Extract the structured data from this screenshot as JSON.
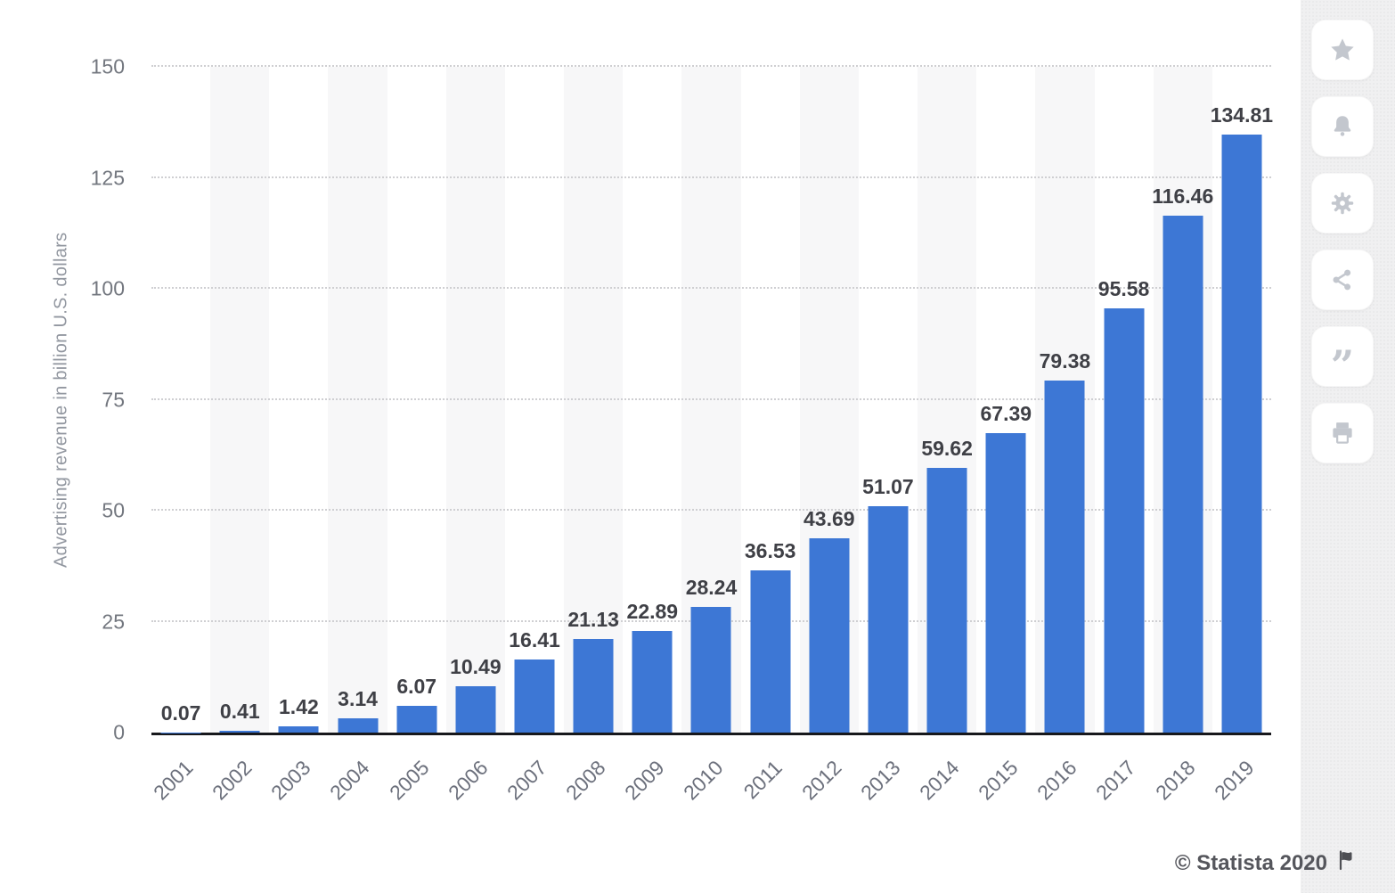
{
  "chart_data": {
    "type": "bar",
    "title": "",
    "categories": [
      "2001",
      "2002",
      "2003",
      "2004",
      "2005",
      "2006",
      "2007",
      "2008",
      "2009",
      "2010",
      "2011",
      "2012",
      "2013",
      "2014",
      "2015",
      "2016",
      "2017",
      "2018",
      "2019"
    ],
    "values": [
      0.07,
      0.41,
      1.42,
      3.14,
      6.07,
      10.49,
      16.41,
      21.13,
      22.89,
      28.24,
      36.53,
      43.69,
      51.07,
      59.62,
      67.39,
      79.38,
      95.58,
      116.46,
      134.81
    ],
    "value_labels": [
      "0.07",
      "0.41",
      "1.42",
      "3.14",
      "6.07",
      "10.49",
      "16.41",
      "21.13",
      "22.89",
      "28.24",
      "36.53",
      "43.69",
      "51.07",
      "59.62",
      "67.39",
      "79.38",
      "95.58",
      "116.46",
      "134.81"
    ],
    "xlabel": "",
    "ylabel": "Advertising revenue in billion U.S. dollars",
    "ylim": [
      0,
      150
    ],
    "yticks": [
      "0",
      "25",
      "50",
      "75",
      "100",
      "125",
      "150"
    ],
    "grid": "horizontal-dotted",
    "legend": "none",
    "bar_color": "#3d77d5",
    "band_color": "#f7f7f8",
    "alternating_column_bands": true
  },
  "sidebar": {
    "buttons": [
      {
        "name": "favorite",
        "icon": "star-icon"
      },
      {
        "name": "notifications",
        "icon": "bell-icon"
      },
      {
        "name": "settings",
        "icon": "gear-icon"
      },
      {
        "name": "share",
        "icon": "share-icon"
      },
      {
        "name": "cite",
        "icon": "quote-icon"
      },
      {
        "name": "print",
        "icon": "printer-icon"
      }
    ]
  },
  "footer": {
    "copyright": "© Statista 2020",
    "flag_icon": "flag-icon"
  }
}
